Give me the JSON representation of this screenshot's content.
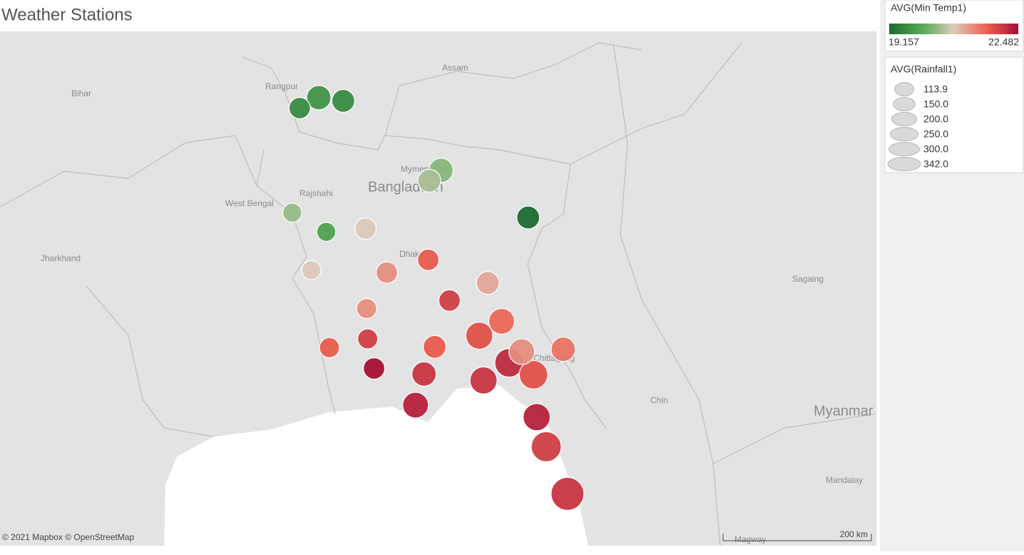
{
  "title": "Weather Stations",
  "map": {
    "type": "map",
    "lon_range": [
      86.57,
      94.81
    ],
    "lat_range": [
      20.01,
      26.45
    ],
    "place_labels": [
      "Bihar",
      "Rangpur",
      "Assam",
      "Mymensingh",
      "Rajshahi",
      "Bangladesh",
      "West Bengal",
      "Jharkhand",
      "Dhaka",
      "Sagaing",
      "Chittagong",
      "Chin",
      "Myanmar",
      "Mandalay",
      "Magway"
    ],
    "stations": {
      "lon": [
        89.39,
        89.57,
        89.8,
        90.72,
        90.61,
        89.32,
        89.64,
        90.01,
        91.54,
        89.5,
        90.6,
        90.21,
        91.16,
        90.8,
        90.02,
        91.29,
        90.03,
        91.08,
        89.67,
        90.66,
        91.48,
        91.87,
        90.09,
        90.56,
        91.36,
        91.59,
        91.12,
        90.48,
        91.62,
        91.71,
        91.91
      ],
      "lat": [
        25.49,
        25.62,
        25.58,
        24.71,
        24.58,
        24.18,
        23.94,
        23.98,
        24.12,
        23.46,
        23.59,
        23.43,
        23.3,
        23.08,
        22.98,
        22.82,
        22.6,
        22.64,
        22.49,
        22.5,
        22.44,
        22.47,
        22.23,
        22.16,
        22.3,
        22.15,
        22.08,
        21.77,
        21.62,
        21.25,
        20.66
      ],
      "min_temp": [
        19.6,
        19.7,
        19.6,
        20.3,
        20.5,
        20.4,
        19.9,
        20.8,
        19.16,
        20.85,
        21.7,
        21.3,
        21.1,
        22.0,
        21.3,
        21.6,
        22.0,
        21.8,
        21.7,
        21.7,
        21.3,
        21.5,
        22.48,
        22.1,
        22.2,
        21.8,
        22.1,
        22.3,
        22.3,
        22.0,
        22.1
      ],
      "rainfall": [
        145,
        187,
        165,
        187,
        165,
        114,
        114,
        145,
        165,
        114,
        145,
        145,
        165,
        145,
        127,
        210,
        127,
        233,
        127,
        165,
        210,
        187,
        145,
        187,
        258,
        258,
        233,
        210,
        233,
        285,
        342
      ]
    },
    "color_legend": {
      "title": "AVG(Min Temp1)",
      "min": 19.157,
      "max": 22.482,
      "colors": [
        "#1c6a31",
        "#55a852",
        "#dccbbd",
        "#ec6150",
        "#a50f36"
      ]
    },
    "size_legend": {
      "title": "AVG(Rainfall1)",
      "ticks": [
        113.9,
        {
          "value": 150,
          "label": "150.0"
        },
        {
          "value": 200,
          "label": "200.0"
        },
        {
          "value": 250,
          "label": "250.0"
        },
        {
          "value": 300,
          "label": "300.0"
        },
        {
          "value": 342,
          "label": "342.0"
        }
      ],
      "color": "#d9d9d9"
    },
    "attribution": "© 2021 Mapbox © OpenStreetMap",
    "scale_label": "200 km"
  }
}
